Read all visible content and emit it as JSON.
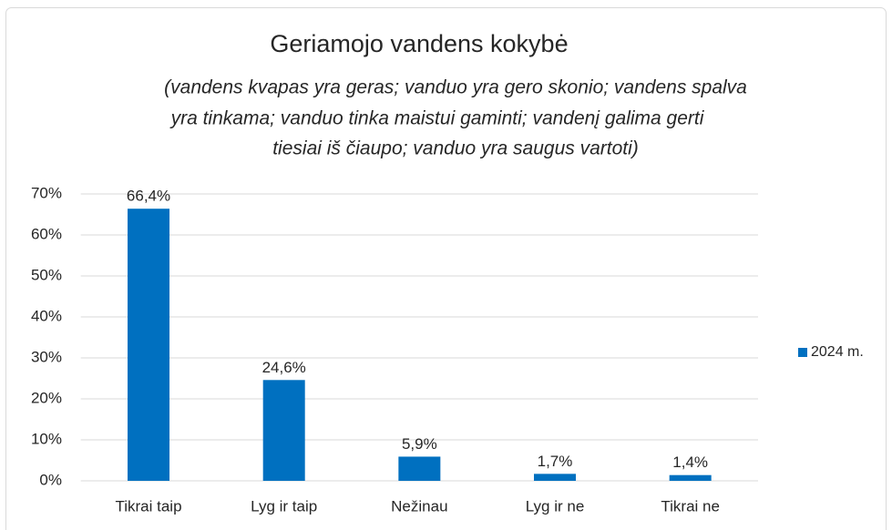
{
  "chart_data": {
    "type": "bar",
    "title": "Geriamojo vandens kokybė",
    "subtitle": [
      "(vandens kvapas yra geras; vanduo yra gero skonio; vandens spalva",
      "yra tinkama; vanduo tinka maistui gaminti; vandenį galima gerti",
      "tiesiai iš čiaupo; vanduo yra saugus vartoti)"
    ],
    "categories": [
      "Tikrai taip",
      "Lyg ir taip",
      "Nežinau",
      "Lyg ir ne",
      "Tikrai ne"
    ],
    "series": [
      {
        "name": "2024 m.",
        "color": "#0070c0",
        "values": [
          66.4,
          24.6,
          5.9,
          1.7,
          1.4
        ],
        "value_labels": [
          "66,4%",
          "24,6%",
          "5,9%",
          "1,7%",
          "1,4%"
        ]
      }
    ],
    "ylim": [
      0,
      70
    ],
    "yticks": [
      {
        "value": 0,
        "label": "0%"
      },
      {
        "value": 10,
        "label": "10%"
      },
      {
        "value": 20,
        "label": "20%"
      },
      {
        "value": 30,
        "label": "30%"
      },
      {
        "value": 40,
        "label": "40%"
      },
      {
        "value": 50,
        "label": "50%"
      },
      {
        "value": 60,
        "label": "60%"
      },
      {
        "value": 70,
        "label": "70%"
      }
    ],
    "grid": true,
    "legend": "right"
  }
}
